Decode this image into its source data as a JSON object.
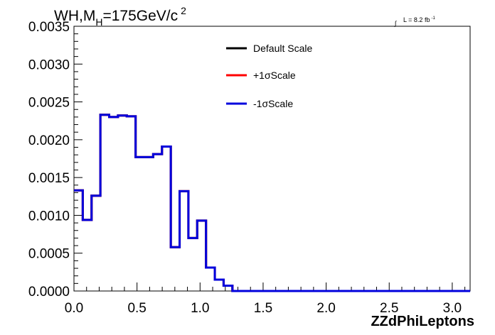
{
  "chart_data": {
    "type": "line",
    "title_main": "WH,M",
    "title_sub": "H",
    "title_rest": "=175GeV/c",
    "title_sup": "2",
    "lumi_integral": "∫",
    "lumi_text": "L = 8.2 fb",
    "lumi_sup": "-1",
    "xlabel": "ZZdPhiLeptons",
    "xlim": [
      0.0,
      3.1416
    ],
    "ylim": [
      0.0,
      0.0035
    ],
    "x_ticks": [
      "0.0",
      "0.5",
      "1.0",
      "1.5",
      "2.0",
      "2.5",
      "3.0"
    ],
    "x_tick_values": [
      0.0,
      0.5,
      1.0,
      1.5,
      2.0,
      2.5,
      3.0
    ],
    "y_ticks": [
      "0.0000",
      "0.0005",
      "0.0010",
      "0.0015",
      "0.0020",
      "0.0025",
      "0.0030",
      "0.0035"
    ],
    "y_tick_values": [
      0.0,
      0.0005,
      0.001,
      0.0015,
      0.002,
      0.0025,
      0.003,
      0.0035
    ],
    "bin_edges": [
      0.0,
      0.0698,
      0.1396,
      0.2094,
      0.2793,
      0.3491,
      0.4189,
      0.4887,
      0.5585,
      0.6283,
      0.6981,
      0.7679,
      0.8378,
      0.9076,
      0.9774,
      1.0472,
      1.117,
      1.1868,
      1.2566,
      1.3265,
      1.3963,
      1.4661,
      1.5359,
      1.6057,
      1.6755,
      1.7453,
      1.8151,
      1.885,
      1.9548,
      2.0246,
      2.0944,
      2.1642,
      2.234,
      2.3038,
      2.3736,
      2.4435,
      2.5133,
      2.5831,
      2.6529,
      2.7227,
      2.7925,
      2.8623,
      2.9322,
      3.002,
      3.0718,
      3.1416
    ],
    "series": [
      {
        "name": "Default Scale",
        "color": "#000000",
        "values": [
          0.00133,
          0.00094,
          0.00126,
          0.00233,
          0.0023,
          0.00232,
          0.00231,
          0.00177,
          0.00177,
          0.00181,
          0.00191,
          0.00058,
          0.00132,
          0.0007,
          0.00093,
          0.00031,
          0.00015,
          7e-05,
          0,
          0,
          0,
          0,
          0,
          0,
          0,
          0,
          0,
          0,
          0,
          0,
          0,
          0,
          0,
          0,
          0,
          0,
          0,
          0,
          0,
          0,
          0,
          0,
          0,
          0,
          0
        ]
      },
      {
        "name": "+1σScale",
        "color": "#ff0000",
        "values": [
          0.00133,
          0.00094,
          0.00126,
          0.00233,
          0.0023,
          0.00232,
          0.00231,
          0.00177,
          0.00177,
          0.00181,
          0.00191,
          0.00058,
          0.00132,
          0.0007,
          0.00093,
          0.00031,
          0.00015,
          7e-05,
          0,
          0,
          0,
          0,
          0,
          0,
          0,
          0,
          0,
          0,
          0,
          0,
          0,
          0,
          0,
          0,
          0,
          0,
          0,
          0,
          0,
          0,
          0,
          0,
          0,
          0,
          0
        ]
      },
      {
        "name": "-1σScale",
        "color": "#0000dd",
        "values": [
          0.00133,
          0.00094,
          0.00126,
          0.00233,
          0.0023,
          0.00232,
          0.00231,
          0.00177,
          0.00177,
          0.00181,
          0.00191,
          0.00058,
          0.00132,
          0.0007,
          0.00093,
          0.00031,
          0.00015,
          7e-05,
          0,
          0,
          0,
          0,
          0,
          0,
          0,
          0,
          0,
          0,
          0,
          0,
          0,
          0,
          0,
          0,
          0,
          0,
          0,
          0,
          0,
          0,
          0,
          0,
          0,
          0,
          0
        ]
      }
    ],
    "legend_position": "top-center"
  }
}
